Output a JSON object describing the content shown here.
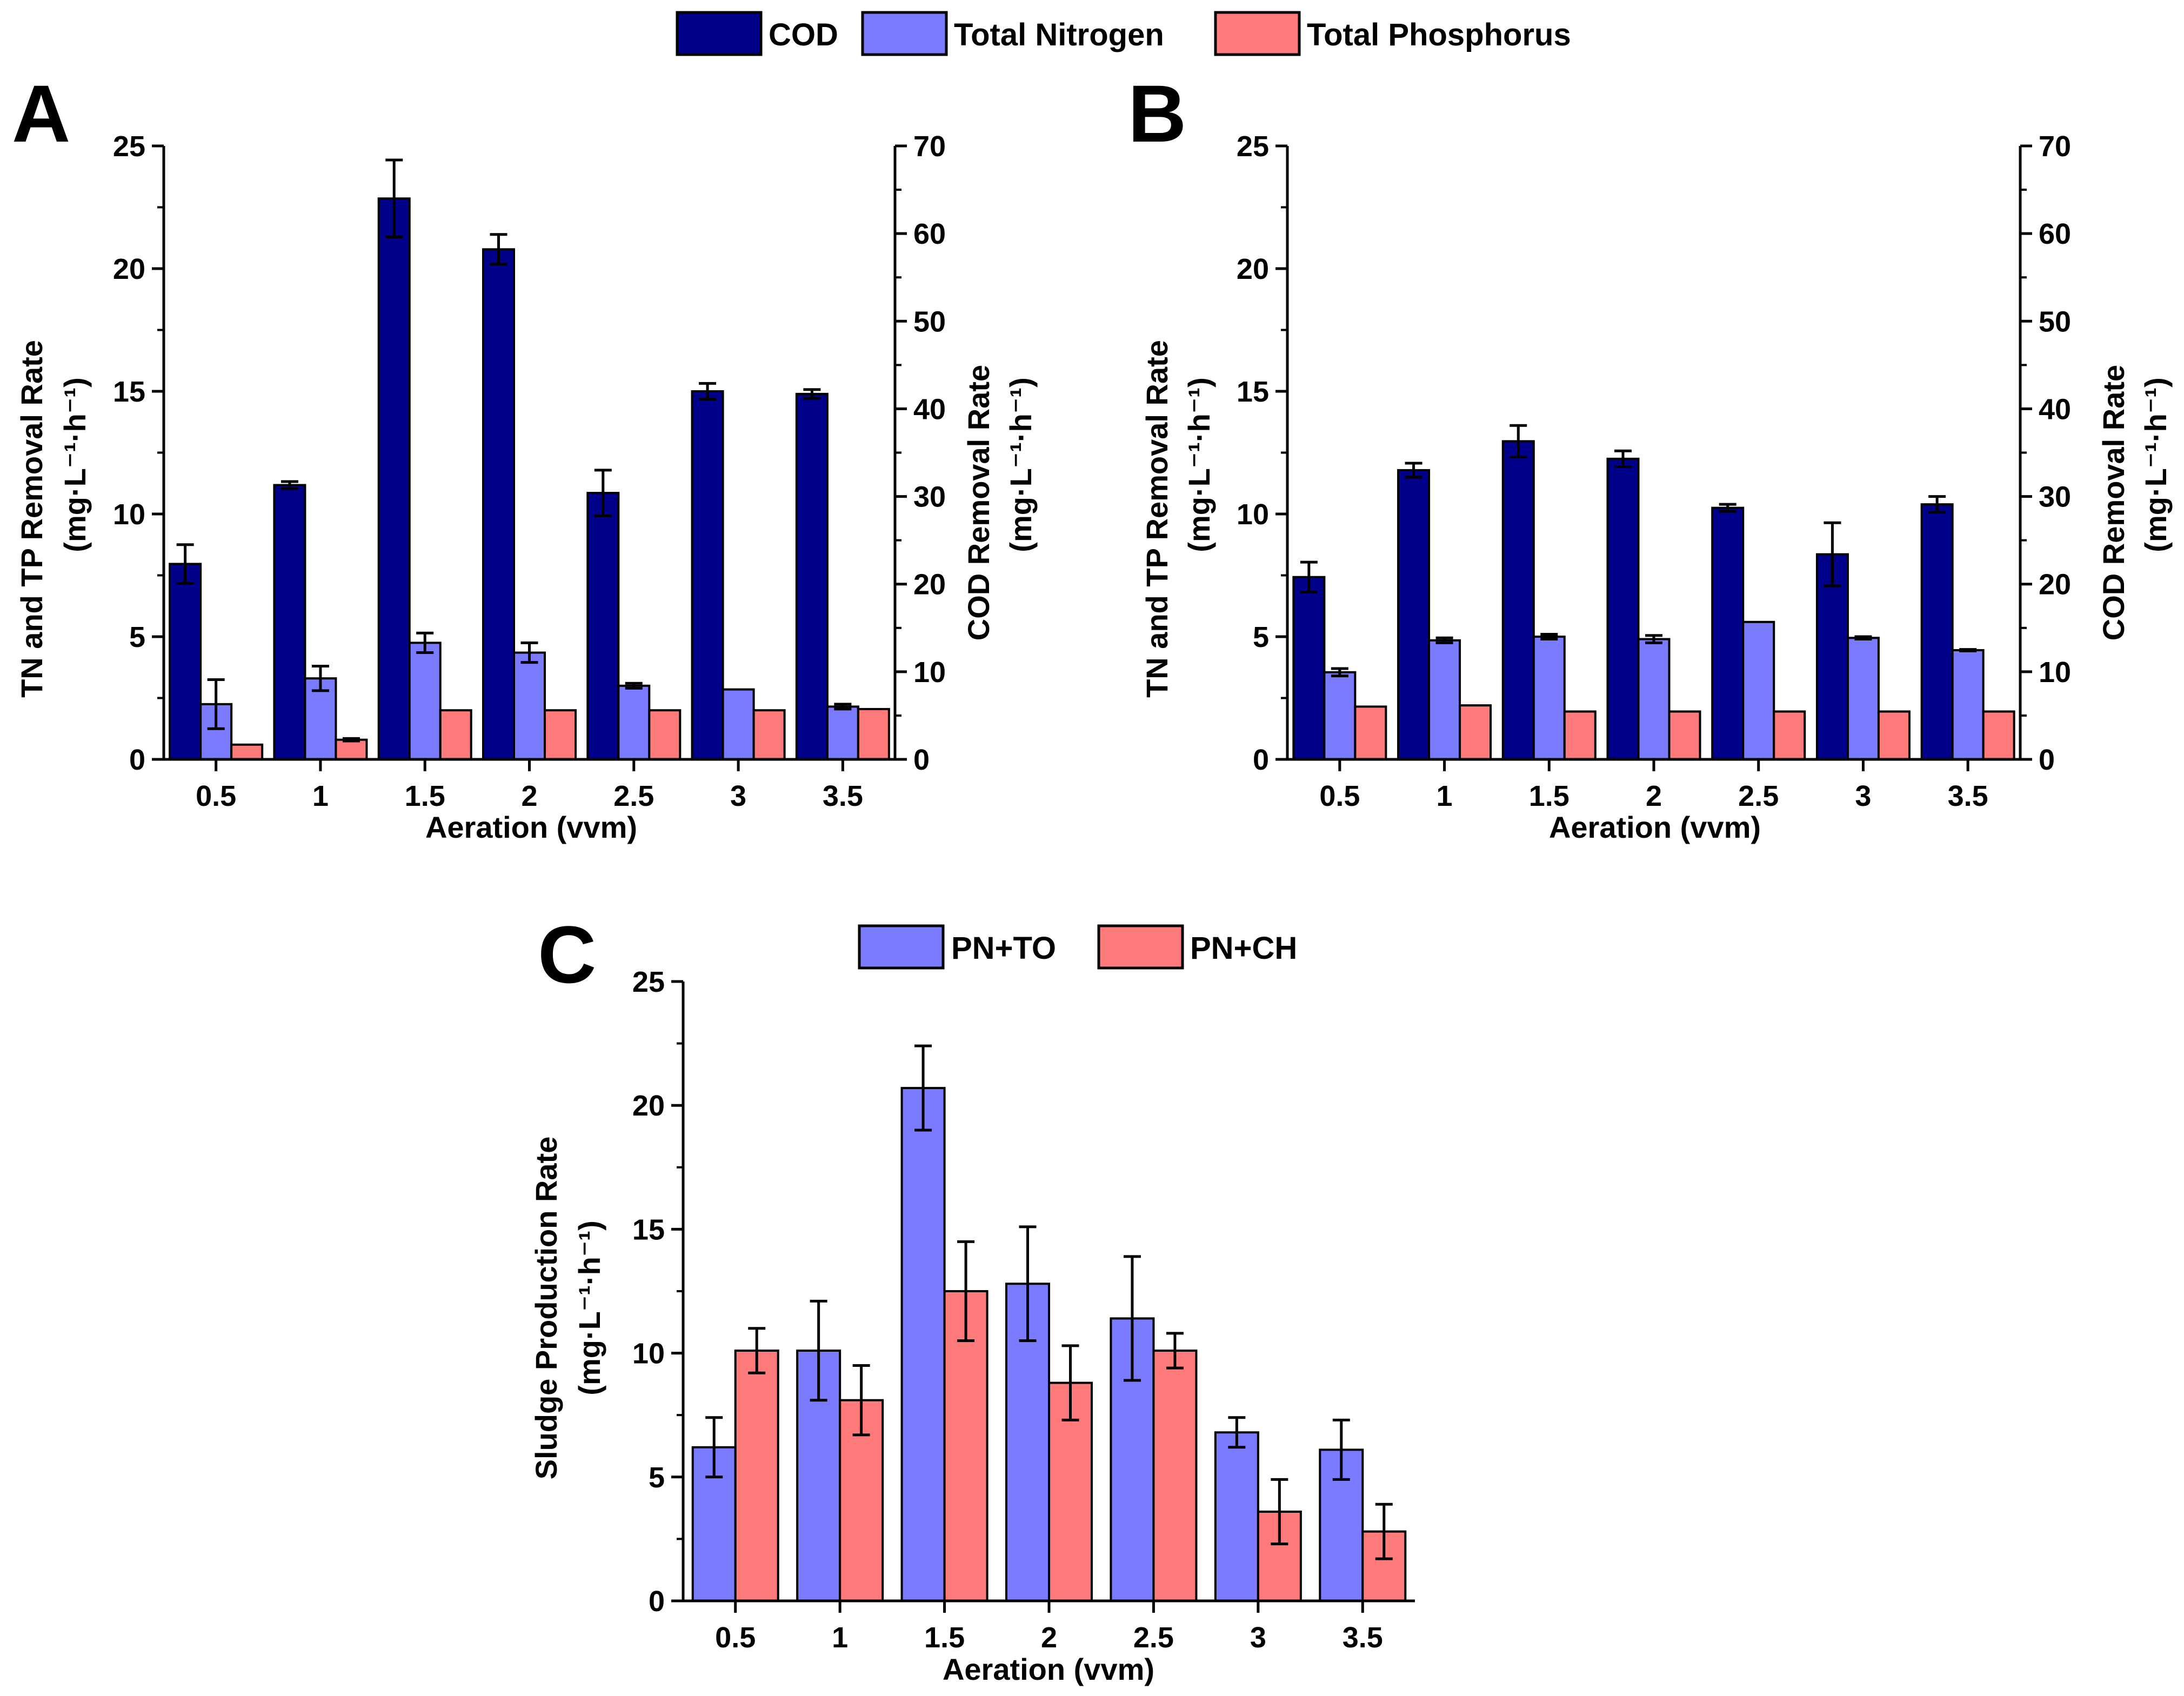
{
  "legend_top": [
    "COD",
    "Total Nitrogen",
    "Total Phosphorus"
  ],
  "legend_c": [
    "PN+TO",
    "PN+CH"
  ],
  "colors": {
    "cod": "#00008b",
    "tn": "#7b7bff",
    "tp": "#ff7a7a",
    "pnto": "#7b7bff",
    "pnch": "#ff7a7a",
    "axis": "#000000"
  },
  "chart_data": [
    {
      "panel": "A",
      "type": "bar",
      "categories": [
        "0.5",
        "1",
        "1.5",
        "2",
        "2.5",
        "3",
        "3.5"
      ],
      "xlabel": "Aeration (vvm)",
      "ylabel": "TN and TP Removal Rate",
      "ylabel_unit": "(mg·L⁻¹·h⁻¹)",
      "y2label": "COD Removal Rate",
      "y2label_unit": "(mg·L⁻¹·h⁻¹)",
      "ylim": [
        0,
        25
      ],
      "yticks": [
        0,
        5,
        10,
        15,
        20,
        25
      ],
      "y2lim": [
        0,
        70
      ],
      "y2ticks": [
        0,
        10,
        20,
        30,
        40,
        50,
        60,
        70
      ],
      "series": [
        {
          "name": "COD",
          "axis": "right",
          "values": [
            22.3,
            31.3,
            64.0,
            58.2,
            30.4,
            42.0,
            41.7
          ],
          "errors": [
            2.2,
            0.4,
            4.4,
            1.7,
            2.6,
            0.9,
            0.5
          ]
        },
        {
          "name": "Total Nitrogen",
          "axis": "left",
          "values": [
            2.25,
            3.3,
            4.75,
            4.35,
            3.0,
            2.85,
            2.15
          ],
          "errors": [
            1.0,
            0.5,
            0.4,
            0.4,
            0.1,
            0.0,
            0.1
          ]
        },
        {
          "name": "Total Phosphorus",
          "axis": "left",
          "values": [
            0.6,
            0.8,
            2.0,
            2.0,
            2.0,
            2.0,
            2.05
          ],
          "errors": [
            0.0,
            0.05,
            0.0,
            0.0,
            0.0,
            0.0,
            0.0
          ]
        }
      ]
    },
    {
      "panel": "B",
      "type": "bar",
      "categories": [
        "0.5",
        "1",
        "1.5",
        "2",
        "2.5",
        "3",
        "3.5"
      ],
      "xlabel": "Aeration (vvm)",
      "ylabel": "TN and TP Removal Rate",
      "ylabel_unit": "(mg·L⁻¹·h⁻¹)",
      "y2label": "COD Removal Rate",
      "y2label_unit": "(mg·L⁻¹·h⁻¹)",
      "ylim": [
        0,
        25
      ],
      "yticks": [
        0,
        5,
        10,
        15,
        20,
        25
      ],
      "y2lim": [
        0,
        70
      ],
      "y2ticks": [
        0,
        10,
        20,
        30,
        40,
        50,
        60,
        70
      ],
      "series": [
        {
          "name": "COD",
          "axis": "right",
          "values": [
            20.8,
            33.0,
            36.3,
            34.3,
            28.7,
            23.4,
            29.1
          ],
          "errors": [
            1.7,
            0.8,
            1.8,
            0.9,
            0.4,
            3.6,
            0.9
          ]
        },
        {
          "name": "Total Nitrogen",
          "axis": "left",
          "values": [
            3.55,
            4.85,
            5.0,
            4.9,
            5.6,
            4.95,
            4.45
          ],
          "errors": [
            0.15,
            0.1,
            0.1,
            0.15,
            0.0,
            0.05,
            0.03
          ]
        },
        {
          "name": "Total Phosphorus",
          "axis": "left",
          "values": [
            2.15,
            2.2,
            1.95,
            1.95,
            1.95,
            1.95,
            1.95
          ],
          "errors": [
            0.0,
            0.0,
            0.0,
            0.0,
            0.0,
            0.0,
            0.0
          ]
        }
      ]
    },
    {
      "panel": "C",
      "type": "bar",
      "categories": [
        "0.5",
        "1",
        "1.5",
        "2",
        "2.5",
        "3",
        "3.5"
      ],
      "xlabel": "Aeration (vvm)",
      "ylabel": "Sludge Production Rate",
      "ylabel_unit": "(mg·L⁻¹·h⁻¹)",
      "ylim": [
        0,
        25
      ],
      "yticks": [
        0,
        5,
        10,
        15,
        20,
        25
      ],
      "series": [
        {
          "name": "PN+TO",
          "values": [
            6.2,
            10.1,
            20.7,
            12.8,
            11.4,
            6.8,
            6.1
          ],
          "errors": [
            1.2,
            2.0,
            1.7,
            2.3,
            2.5,
            0.6,
            1.2
          ]
        },
        {
          "name": "PN+CH",
          "values": [
            10.1,
            8.1,
            12.5,
            8.8,
            10.1,
            3.6,
            2.8
          ],
          "errors": [
            0.9,
            1.4,
            2.0,
            1.5,
            0.7,
            1.3,
            1.1
          ]
        }
      ]
    }
  ]
}
